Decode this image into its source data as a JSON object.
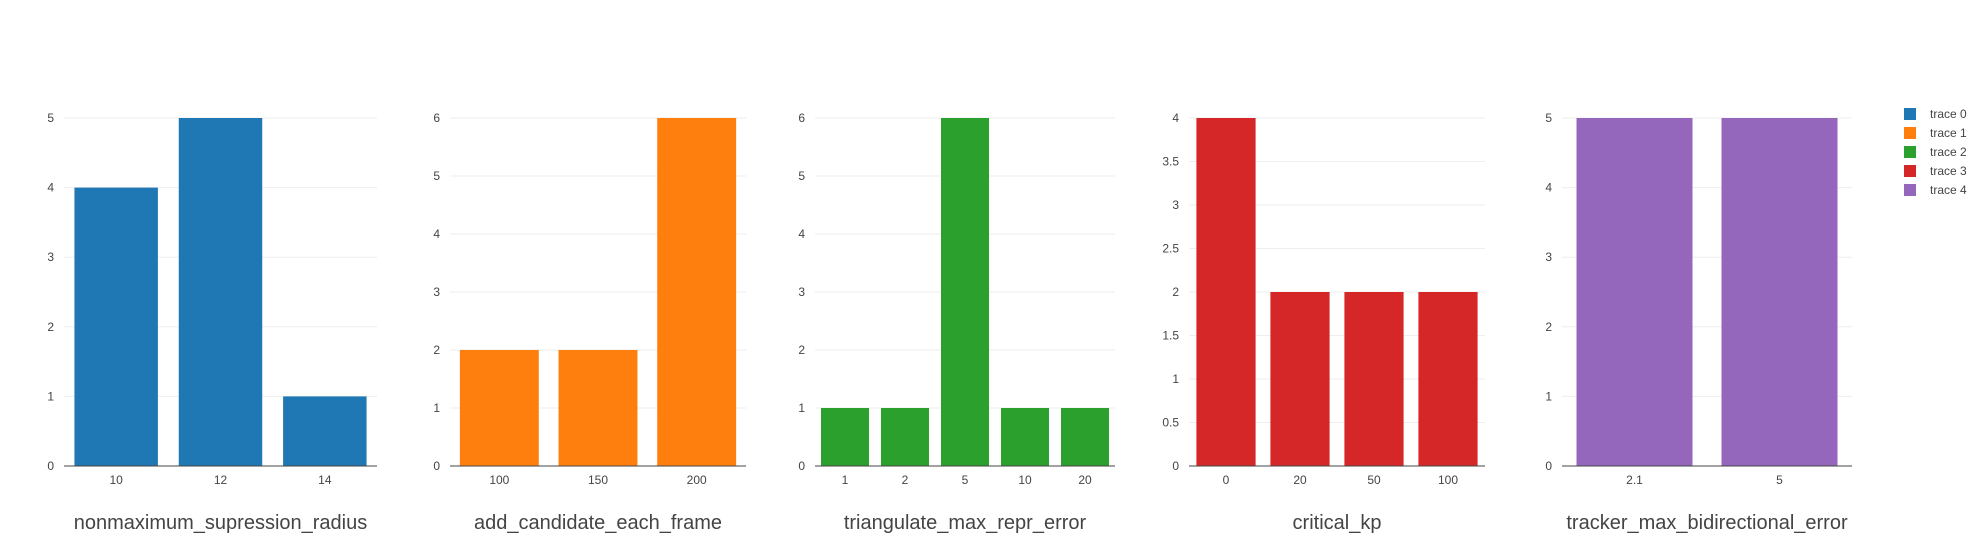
{
  "chart_data": [
    {
      "type": "bar",
      "xlabel": "nonmaximum_supression_radius",
      "categories": [
        "10",
        "12",
        "14"
      ],
      "series": [
        {
          "name": "trace 0",
          "values": [
            4,
            5,
            1
          ]
        }
      ],
      "ylim": [
        0,
        5
      ],
      "yticks": [
        "0",
        "1",
        "2",
        "3",
        "4",
        "5"
      ],
      "color": "#1f77b4"
    },
    {
      "type": "bar",
      "xlabel": "add_candidate_each_frame",
      "categories": [
        "100",
        "150",
        "200"
      ],
      "series": [
        {
          "name": "trace 1",
          "values": [
            2,
            2,
            6
          ]
        }
      ],
      "ylim": [
        0,
        6
      ],
      "yticks": [
        "0",
        "1",
        "2",
        "3",
        "4",
        "5",
        "6"
      ],
      "color": "#ff7f0e"
    },
    {
      "type": "bar",
      "xlabel": "triangulate_max_repr_error",
      "categories": [
        "1",
        "2",
        "5",
        "10",
        "20"
      ],
      "series": [
        {
          "name": "trace 2",
          "values": [
            1,
            1,
            6,
            1,
            1
          ]
        }
      ],
      "ylim": [
        0,
        6
      ],
      "yticks": [
        "0",
        "1",
        "2",
        "3",
        "4",
        "5",
        "6"
      ],
      "color": "#2ca02c"
    },
    {
      "type": "bar",
      "xlabel": "critical_kp",
      "categories": [
        "0",
        "20",
        "50",
        "100"
      ],
      "series": [
        {
          "name": "trace 3",
          "values": [
            4,
            2,
            2,
            2
          ]
        }
      ],
      "ylim": [
        0,
        4
      ],
      "yticks": [
        "0",
        "0.5",
        "1",
        "1.5",
        "2",
        "2.5",
        "3",
        "3.5",
        "4"
      ],
      "color": "#d62728"
    },
    {
      "type": "bar",
      "xlabel": "tracker_max_bidirectional_error",
      "categories": [
        "2.1",
        "5"
      ],
      "series": [
        {
          "name": "trace 4",
          "values": [
            5,
            5
          ]
        }
      ],
      "ylim": [
        0,
        5
      ],
      "yticks": [
        "0",
        "1",
        "2",
        "3",
        "4",
        "5"
      ],
      "color": "#9467bd"
    }
  ],
  "legend": {
    "position": "top-right",
    "items": [
      {
        "label": "trace 0",
        "color": "#1f77b4"
      },
      {
        "label": "trace 1",
        "color": "#ff7f0e"
      },
      {
        "label": "trace 2",
        "color": "#2ca02c"
      },
      {
        "label": "trace 3",
        "color": "#d62728"
      },
      {
        "label": "trace 4",
        "color": "#9467bd"
      }
    ]
  }
}
